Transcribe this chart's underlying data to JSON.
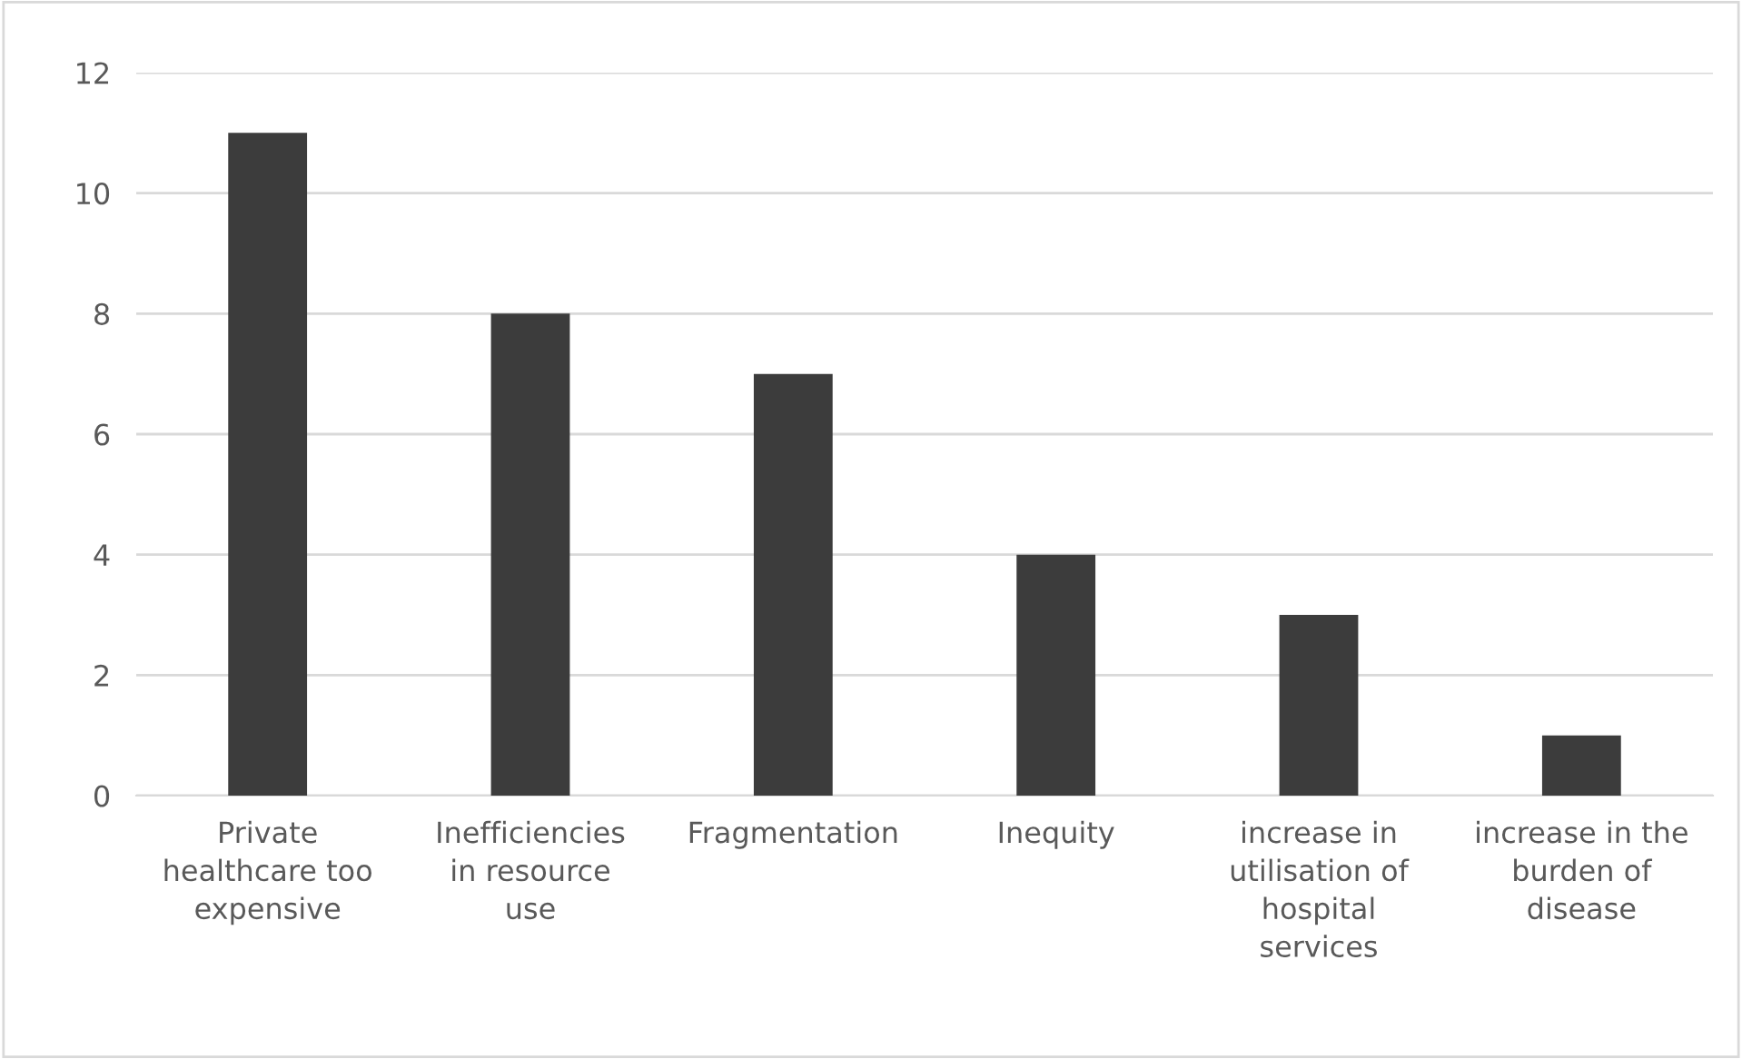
{
  "chart_data": {
    "type": "bar",
    "categories": [
      "Private\nhealthcare too\nexpensive",
      "Inefficiencies\nin resource\nuse",
      "Fragmentation",
      "Inequity",
      "increase in\nutilisation of\nhospital\nservices",
      "increase in the\nburden of\ndisease"
    ],
    "values": [
      11,
      8,
      7,
      4,
      3,
      1
    ],
    "color": "#3c3c3c",
    "ylim": [
      0,
      12
    ],
    "yticks": [
      0,
      2,
      4,
      6,
      8,
      10,
      12
    ],
    "grid": "y"
  }
}
